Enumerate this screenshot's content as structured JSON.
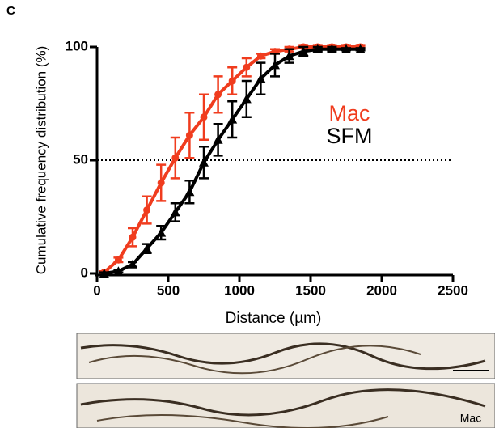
{
  "panel_label": "C",
  "chart_data": {
    "type": "line",
    "xlabel": "Distance (µm)",
    "ylabel": "Cumulative frequency distribution (%)",
    "x": [
      50,
      150,
      250,
      350,
      450,
      550,
      650,
      750,
      850,
      950,
      1050,
      1150,
      1250,
      1350,
      1450,
      1550,
      1650,
      1750,
      1850
    ],
    "series": [
      {
        "name": "Mac",
        "color": "#f03c1e",
        "marker": "circle",
        "values": [
          0.5,
          6,
          16,
          28,
          40,
          51,
          61,
          69,
          79,
          85,
          91,
          96,
          98,
          99,
          100,
          100,
          100,
          100,
          100
        ],
        "errors": [
          0.5,
          1,
          4,
          6,
          8,
          9,
          10,
          10,
          8,
          6,
          4,
          1,
          1,
          1,
          0.5,
          0.5,
          0.5,
          0.5,
          0.5
        ]
      },
      {
        "name": "SFM",
        "color": "#000000",
        "marker": "triangle",
        "values": [
          0,
          1,
          4,
          11,
          18,
          27,
          36,
          49,
          59,
          68,
          77,
          86,
          92,
          96,
          98,
          99,
          99,
          99,
          99
        ],
        "errors": [
          0.5,
          0.5,
          1,
          2,
          3,
          4,
          5,
          7,
          7,
          8,
          8,
          7,
          5,
          3,
          2,
          1,
          1,
          0.5,
          0.5
        ]
      }
    ],
    "xlim": [
      0,
      2500
    ],
    "xticks": [
      0,
      500,
      1000,
      1500,
      2000,
      2500
    ],
    "ylim": [
      0,
      100
    ],
    "yticks": [
      0,
      50,
      100
    ],
    "reference_line": 50
  },
  "image_label": "Mac"
}
